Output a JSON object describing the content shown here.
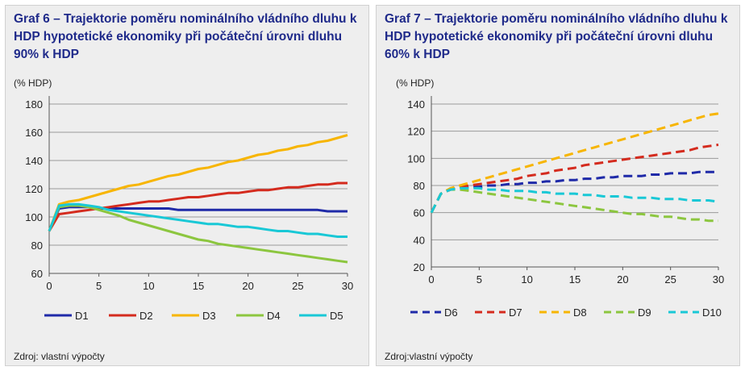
{
  "panels": [
    {
      "title": "Graf 6 – Trajektorie poměru nominálního vládního dluhu k HDP hypotetické ekonomiky při počáteční úrovni dluhu 90% k HDP",
      "source": "Zdroj: vlastní výpočty"
    },
    {
      "title": "Graf 7 – Trajektorie poměru nominálního vládního dluhu k HDP hypotetické ekonomiky při počáteční úrovni dluhu 60% k HDP",
      "source": "Zdroj:vlastní výpočty"
    }
  ],
  "chart_data": [
    {
      "type": "line",
      "title": "Graf 6 – Trajektorie poměru nominálního vládního dluhu k HDP hypotetické ekonomiky při počáteční úrovni dluhu 90% k HDP",
      "ylabel": "(% HDP)",
      "xlabel": "",
      "xlim": [
        0,
        30
      ],
      "ylim": [
        60,
        180
      ],
      "xticks": [
        0,
        5,
        10,
        15,
        20,
        25,
        30
      ],
      "yticks": [
        60,
        80,
        100,
        120,
        140,
        160,
        180
      ],
      "grid": "horizontal",
      "legend_position": "bottom",
      "x": [
        0,
        1,
        2,
        3,
        4,
        5,
        6,
        7,
        8,
        9,
        10,
        11,
        12,
        13,
        14,
        15,
        16,
        17,
        18,
        19,
        20,
        21,
        22,
        23,
        24,
        25,
        26,
        27,
        28,
        29,
        30
      ],
      "series": [
        {
          "name": "D1",
          "color": "#1f2aa8",
          "dash": false,
          "values": [
            90,
            106,
            107,
            107,
            107,
            106,
            106,
            106,
            106,
            106,
            106,
            106,
            106,
            105,
            105,
            105,
            105,
            105,
            105,
            105,
            105,
            105,
            105,
            105,
            105,
            105,
            105,
            105,
            104,
            104,
            104
          ]
        },
        {
          "name": "D2",
          "color": "#d42b1e",
          "dash": false,
          "values": [
            90,
            102,
            103,
            104,
            105,
            106,
            107,
            108,
            109,
            110,
            111,
            111,
            112,
            113,
            114,
            114,
            115,
            116,
            117,
            117,
            118,
            119,
            119,
            120,
            121,
            121,
            122,
            123,
            123,
            124,
            124
          ]
        },
        {
          "name": "D3",
          "color": "#f7b500",
          "dash": false,
          "values": [
            90,
            109,
            111,
            112,
            114,
            116,
            118,
            120,
            122,
            123,
            125,
            127,
            129,
            130,
            132,
            134,
            135,
            137,
            139,
            140,
            142,
            144,
            145,
            147,
            148,
            150,
            151,
            153,
            154,
            156,
            158
          ]
        },
        {
          "name": "D4",
          "color": "#8cc63f",
          "dash": false,
          "values": [
            90,
            107,
            108,
            108,
            107,
            105,
            103,
            101,
            98,
            96,
            94,
            92,
            90,
            88,
            86,
            84,
            83,
            81,
            80,
            79,
            78,
            77,
            76,
            75,
            74,
            73,
            72,
            71,
            70,
            69,
            68
          ]
        },
        {
          "name": "D5",
          "color": "#19c8d6",
          "dash": false,
          "values": [
            90,
            108,
            109,
            109,
            108,
            107,
            105,
            104,
            103,
            102,
            101,
            100,
            99,
            98,
            97,
            96,
            95,
            95,
            94,
            93,
            93,
            92,
            91,
            90,
            90,
            89,
            88,
            88,
            87,
            86,
            86
          ]
        }
      ]
    },
    {
      "type": "line",
      "title": "Graf 7 – Trajektorie poměru nominálního vládního dluhu k HDP hypotetické ekonomiky při počáteční úrovni dluhu 60% k HDP",
      "ylabel": "(% HDP)",
      "xlabel": "",
      "xlim": [
        0,
        30
      ],
      "ylim": [
        20,
        140
      ],
      "xticks": [
        0,
        5,
        10,
        15,
        20,
        25,
        30
      ],
      "yticks": [
        20,
        40,
        60,
        80,
        100,
        120,
        140
      ],
      "grid": "horizontal",
      "legend_position": "bottom",
      "x": [
        0,
        1,
        2,
        3,
        4,
        5,
        6,
        7,
        8,
        9,
        10,
        11,
        12,
        13,
        14,
        15,
        16,
        17,
        18,
        19,
        20,
        21,
        22,
        23,
        24,
        25,
        26,
        27,
        28,
        29,
        30
      ],
      "series": [
        {
          "name": "D6",
          "color": "#1f2aa8",
          "dash": true,
          "values": [
            60,
            74,
            77,
            78,
            79,
            79,
            80,
            80,
            81,
            81,
            82,
            82,
            83,
            83,
            84,
            84,
            85,
            85,
            86,
            86,
            87,
            87,
            87,
            88,
            88,
            89,
            89,
            89,
            90,
            90,
            90
          ]
        },
        {
          "name": "D7",
          "color": "#d42b1e",
          "dash": true,
          "values": [
            60,
            74,
            77,
            79,
            80,
            81,
            82,
            83,
            84,
            85,
            87,
            88,
            89,
            91,
            92,
            93,
            95,
            96,
            97,
            98,
            99,
            100,
            101,
            102,
            103,
            104,
            105,
            106,
            108,
            109,
            110
          ]
        },
        {
          "name": "D8",
          "color": "#f7b500",
          "dash": true,
          "values": [
            60,
            74,
            78,
            80,
            82,
            84,
            86,
            88,
            90,
            92,
            94,
            96,
            98,
            100,
            102,
            104,
            106,
            108,
            110,
            112,
            114,
            116,
            118,
            120,
            122,
            124,
            126,
            128,
            130,
            132,
            133
          ]
        },
        {
          "name": "D9",
          "color": "#8cc63f",
          "dash": true,
          "values": [
            60,
            74,
            77,
            77,
            76,
            75,
            74,
            73,
            72,
            71,
            70,
            69,
            68,
            67,
            66,
            65,
            64,
            63,
            62,
            61,
            60,
            59,
            59,
            58,
            57,
            57,
            56,
            55,
            55,
            54,
            54
          ]
        },
        {
          "name": "D10",
          "color": "#19c8d6",
          "dash": true,
          "values": [
            60,
            74,
            77,
            78,
            78,
            78,
            77,
            77,
            76,
            76,
            76,
            75,
            75,
            74,
            74,
            74,
            73,
            73,
            72,
            72,
            72,
            71,
            71,
            71,
            70,
            70,
            70,
            69,
            69,
            69,
            68
          ]
        }
      ]
    }
  ]
}
